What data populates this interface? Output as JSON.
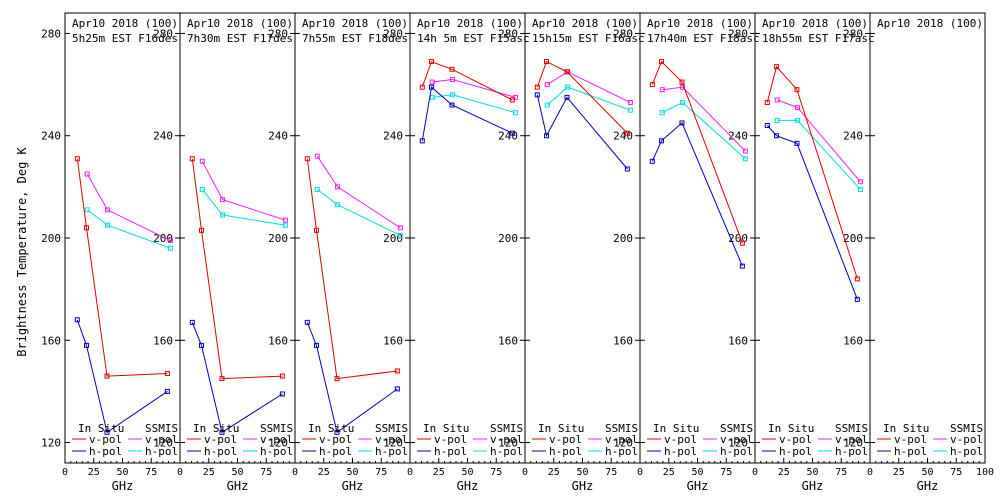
{
  "chart_data": {
    "type": "line",
    "ylabel": "Brightness Temperature, Deg K",
    "xlabel": "GHz",
    "ylim": [
      112,
      288
    ],
    "xlim": [
      0,
      100
    ],
    "y_ticks": [
      120,
      160,
      200,
      240,
      280
    ],
    "x_tick_labels": [
      "0",
      "25",
      "50",
      "75",
      "100"
    ],
    "legend": {
      "in_situ": "In Situ",
      "ssmis": "SSMIS",
      "vpol": "v-pol",
      "hpol": "h-pol"
    },
    "colors": {
      "insitu_v": "#dd0000",
      "insitu_h": "#0000bb",
      "ssmis_v": "#ee22ee",
      "ssmis_h": "#00dddd",
      "axis": "#000000"
    },
    "panels": [
      {
        "title1": "Apr10 2018 (100)",
        "title2": "5h25m EST F16des",
        "insitu_v": [
          [
            10.7,
            231
          ],
          [
            18.7,
            204
          ],
          [
            36.5,
            146
          ],
          [
            89,
            147
          ]
        ],
        "insitu_h": [
          [
            10.7,
            168
          ],
          [
            18.7,
            158
          ],
          [
            36.5,
            124
          ],
          [
            89,
            140
          ]
        ],
        "ssmis_v": [
          [
            19.35,
            225
          ],
          [
            37,
            211
          ],
          [
            91.65,
            199
          ]
        ],
        "ssmis_h": [
          [
            19.35,
            211
          ],
          [
            37,
            205
          ],
          [
            91.65,
            196
          ]
        ]
      },
      {
        "title1": "Apr10 2018 (100)",
        "title2": "7h30m EST F17des",
        "insitu_v": [
          [
            10.7,
            231
          ],
          [
            18.7,
            203
          ],
          [
            36.5,
            145
          ],
          [
            89,
            146
          ]
        ],
        "insitu_h": [
          [
            10.7,
            167
          ],
          [
            18.7,
            158
          ],
          [
            36.5,
            124
          ],
          [
            89,
            139
          ]
        ],
        "ssmis_v": [
          [
            19.35,
            230
          ],
          [
            37,
            215
          ],
          [
            91.65,
            207
          ]
        ],
        "ssmis_h": [
          [
            19.35,
            219
          ],
          [
            37,
            209
          ],
          [
            91.65,
            205
          ]
        ]
      },
      {
        "title1": "Apr10 2018 (100)",
        "title2": "7h55m EST F18des",
        "insitu_v": [
          [
            10.7,
            231
          ],
          [
            18.7,
            203
          ],
          [
            36.5,
            145
          ],
          [
            89,
            148
          ]
        ],
        "insitu_h": [
          [
            10.7,
            167
          ],
          [
            18.7,
            158
          ],
          [
            36.5,
            124
          ],
          [
            89,
            141
          ]
        ],
        "ssmis_v": [
          [
            19.35,
            232
          ],
          [
            37,
            220
          ],
          [
            91.65,
            204
          ]
        ],
        "ssmis_h": [
          [
            19.35,
            219
          ],
          [
            37,
            213
          ],
          [
            91.65,
            201
          ]
        ]
      },
      {
        "title1": "Apr10 2018 (100)",
        "title2": "14h 5m EST F15asc",
        "insitu_v": [
          [
            10.7,
            259
          ],
          [
            18.7,
            269
          ],
          [
            36.5,
            266
          ],
          [
            89,
            254
          ]
        ],
        "insitu_h": [
          [
            10.7,
            238
          ],
          [
            18.7,
            259
          ],
          [
            36.5,
            252
          ],
          [
            89,
            241
          ]
        ],
        "ssmis_v": [
          [
            19.35,
            261
          ],
          [
            37,
            262
          ],
          [
            91.65,
            255
          ]
        ],
        "ssmis_h": [
          [
            19.35,
            255
          ],
          [
            37,
            256
          ],
          [
            91.65,
            249
          ]
        ]
      },
      {
        "title1": "Apr10 2018 (100)",
        "title2": "15h15m EST F16asc",
        "insitu_v": [
          [
            10.7,
            259
          ],
          [
            18.7,
            269
          ],
          [
            36.5,
            265
          ],
          [
            89,
            241
          ]
        ],
        "insitu_h": [
          [
            10.7,
            256
          ],
          [
            18.7,
            240
          ],
          [
            36.5,
            255
          ],
          [
            89,
            227
          ]
        ],
        "ssmis_v": [
          [
            19.35,
            260
          ],
          [
            37,
            265
          ],
          [
            91.65,
            253
          ]
        ],
        "ssmis_h": [
          [
            19.35,
            252
          ],
          [
            37,
            259
          ],
          [
            91.65,
            250
          ]
        ]
      },
      {
        "title1": "Apr10 2018 (100)",
        "title2": "17h40m EST F18asc",
        "insitu_v": [
          [
            10.7,
            260
          ],
          [
            18.7,
            269
          ],
          [
            36.5,
            261
          ],
          [
            89,
            198
          ]
        ],
        "insitu_h": [
          [
            10.7,
            230
          ],
          [
            18.7,
            238
          ],
          [
            36.5,
            245
          ],
          [
            89,
            189
          ]
        ],
        "ssmis_v": [
          [
            19.35,
            258
          ],
          [
            37,
            259
          ],
          [
            91.65,
            234
          ]
        ],
        "ssmis_h": [
          [
            19.35,
            249
          ],
          [
            37,
            253
          ],
          [
            91.65,
            231
          ]
        ]
      },
      {
        "title1": "Apr10 2018 (100)",
        "title2": "18h55m EST F17asc",
        "insitu_v": [
          [
            10.7,
            253
          ],
          [
            18.7,
            267
          ],
          [
            36.5,
            258
          ],
          [
            89,
            184
          ]
        ],
        "insitu_h": [
          [
            10.7,
            244
          ],
          [
            18.7,
            240
          ],
          [
            36.5,
            237
          ],
          [
            89,
            176
          ]
        ],
        "ssmis_v": [
          [
            19.35,
            254
          ],
          [
            37,
            251
          ],
          [
            91.65,
            222
          ]
        ],
        "ssmis_h": [
          [
            19.35,
            246
          ],
          [
            37,
            246
          ],
          [
            91.65,
            219
          ]
        ]
      },
      {
        "title1": "Apr10 2018 (100)",
        "title2": "",
        "insitu_v": [],
        "insitu_h": [],
        "ssmis_v": [],
        "ssmis_h": []
      }
    ]
  }
}
